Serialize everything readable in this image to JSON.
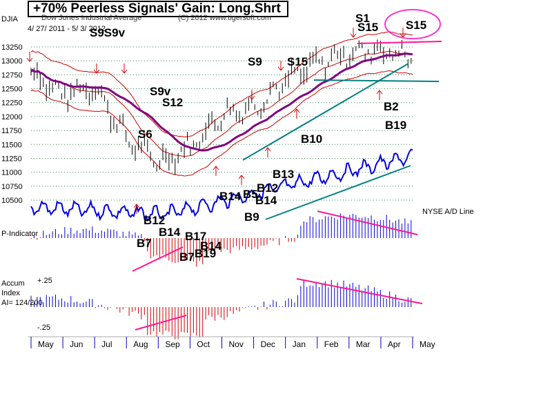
{
  "header": {
    "title": "+70% Peerless Signals' Gain: Long.Shrt",
    "index": "DJIA",
    "subtitle": "Dow Jones Industrial Average",
    "date_range": "4/ 27/ 2011 - 5/ 3/ 2012",
    "copyright": "(C) 2012 www.tigersoft.com"
  },
  "chart_data": {
    "type": "line",
    "title": "+70% Peerless Signals' Gain: Long.Shrt",
    "x_months": [
      "May",
      "Jun",
      "Jul",
      "Aug",
      "Sep",
      "Oct",
      "Nov",
      "Dec",
      "Jan",
      "Feb",
      "Mar",
      "Apr",
      "May"
    ],
    "price_axis": {
      "ticks": [
        13250,
        13000,
        12750,
        12500,
        12250,
        12000,
        11750,
        11500,
        11250,
        11000,
        10750,
        10500
      ],
      "ylim": [
        10400,
        13350
      ]
    },
    "dji_close_monthly": [
      12810,
      12380,
      12550,
      11610,
      11180,
      11450,
      12040,
      12180,
      12630,
      12950,
      13150,
      13200,
      13050
    ],
    "ad_line_label": "NYSE A/D Line",
    "p_indicator_label": "P-Indicator",
    "accum_index": {
      "label_1": "Accum",
      "label_2": "Index",
      "reading": "AI= 124/200",
      "top_tick": "+.25",
      "bottom_tick": "-.25"
    },
    "sell_signals": [
      "S9S9v",
      "S9v",
      "S12",
      "S6",
      "S9",
      "S15",
      "S1",
      "S15",
      "S15"
    ],
    "buy_signals": [
      "B12",
      "B14",
      "B17",
      "B7",
      "B14",
      "B7",
      "B19",
      "B10",
      "B13",
      "B14",
      "B5",
      "B12",
      "B14",
      "B9",
      "B2",
      "B19"
    ]
  }
}
